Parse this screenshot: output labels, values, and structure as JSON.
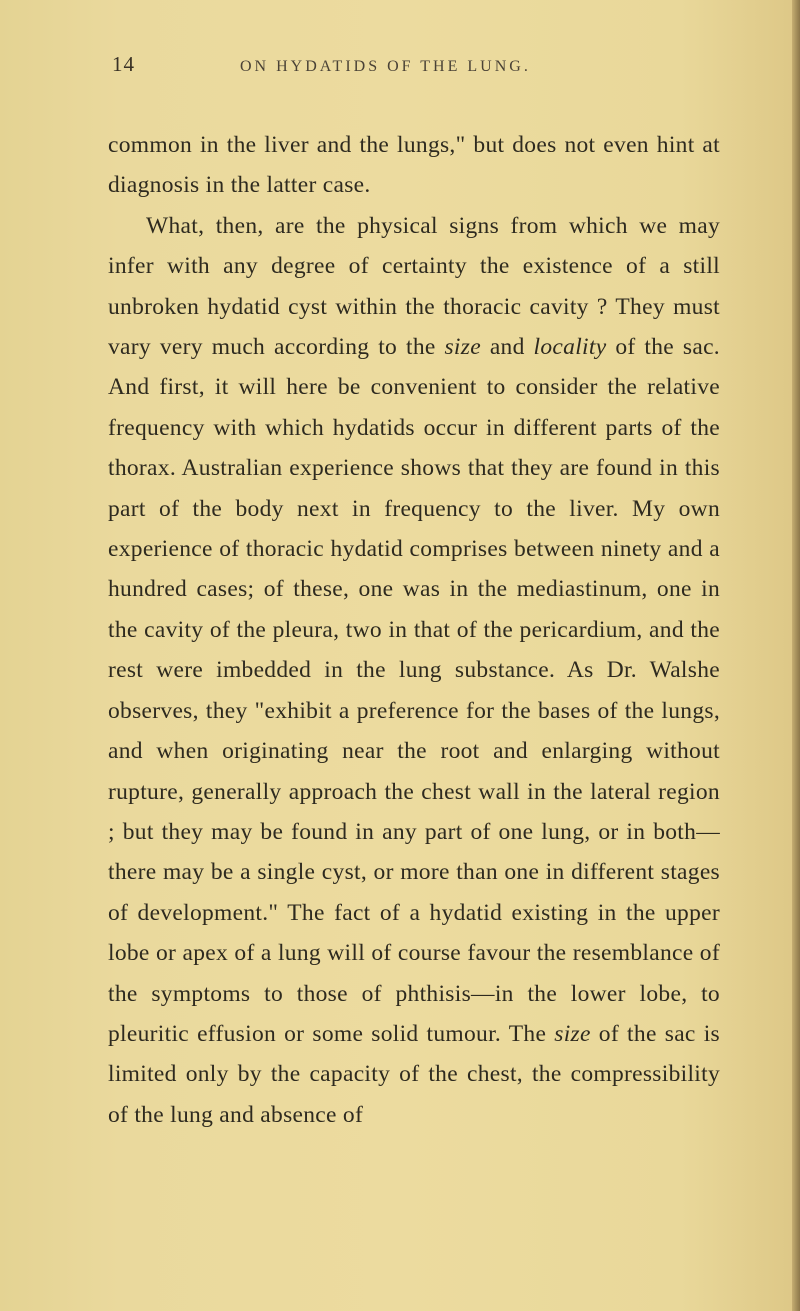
{
  "page": {
    "number": "14",
    "running_title": "ON HYDATIDS OF THE LUNG.",
    "background_color": "#e8d89a",
    "text_color": "#2e2a1f",
    "header_color": "#3a3226",
    "body_fontsize": 23.5,
    "header_fontsize": 16,
    "pagenum_fontsize": 21,
    "line_height": 1.72
  },
  "paragraphs": {
    "p1_part1": "common in the liver and the lungs,\" but does not even hint at diagnosis in the latter case.",
    "p2_part1": "What, then, are the physical signs from which we may infer with any degree of certainty the existence of a still unbroken hydatid cyst within the thoracic cavity ? They must vary very much according to the ",
    "p2_italic1": "size",
    "p2_part2": " and ",
    "p2_italic2": "locality",
    "p2_part3": " of the sac. And first, it will here be convenient to consider the relative frequency with which hydatids occur in different parts of the thorax. Australian experience shows that they are found in this part of the body next in frequency to the liver. My own experience of thoracic hydatid comprises between ninety and a hundred cases; of these, one was in the mediastinum, one in the cavity of the pleura, two in that of the pericardium, and the rest were imbedded in the lung substance. As Dr. Walshe observes, they \"exhibit a preference for the bases of the lungs, and when originating near the root and enlarging without rupture, generally approach the chest wall in the lateral region ; but they may be found in any part of one lung, or in both—there may be a single cyst, or more than one in different stages of development.\" The fact of a hydatid existing in the upper lobe or apex of a lung will of course favour the resemblance of the symptoms to those of phthisis—in the lower lobe, to pleuritic effusion or some solid tumour. The ",
    "p2_italic3": "size",
    "p2_part4": " of the sac is limited only by the capacity of the chest, the compressibility of the lung and absence of"
  }
}
